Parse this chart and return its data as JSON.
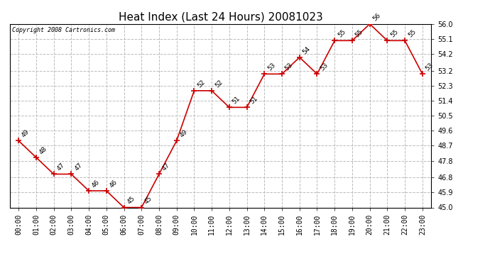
{
  "title": "Heat Index (Last 24 Hours) 20081023",
  "copyright": "Copyright 2008 Cartronics.com",
  "hours": [
    "00:00",
    "01:00",
    "02:00",
    "03:00",
    "04:00",
    "05:00",
    "06:00",
    "07:00",
    "08:00",
    "09:00",
    "10:00",
    "11:00",
    "12:00",
    "13:00",
    "14:00",
    "15:00",
    "16:00",
    "17:00",
    "18:00",
    "19:00",
    "20:00",
    "21:00",
    "22:00",
    "23:00"
  ],
  "values": [
    49,
    48,
    47,
    47,
    46,
    46,
    45,
    45,
    47,
    49,
    52,
    52,
    51,
    51,
    53,
    53,
    54,
    53,
    55,
    55,
    56,
    55,
    55,
    53
  ],
  "line_color": "#CC0000",
  "marker": "+",
  "marker_color": "#CC0000",
  "marker_size": 6,
  "grid_color": "#BBBBBB",
  "grid_style": "--",
  "background_color": "#FFFFFF",
  "plot_bg_color": "#FFFFFF",
  "ylim_min": 45.0,
  "ylim_max": 56.0,
  "title_fontsize": 11,
  "tick_fontsize": 7,
  "annotation_fontsize": 6.5,
  "copyright_fontsize": 6,
  "yticks": [
    45.0,
    45.9,
    46.8,
    47.8,
    48.7,
    49.6,
    50.5,
    51.4,
    52.3,
    53.2,
    54.2,
    55.1,
    56.0
  ]
}
